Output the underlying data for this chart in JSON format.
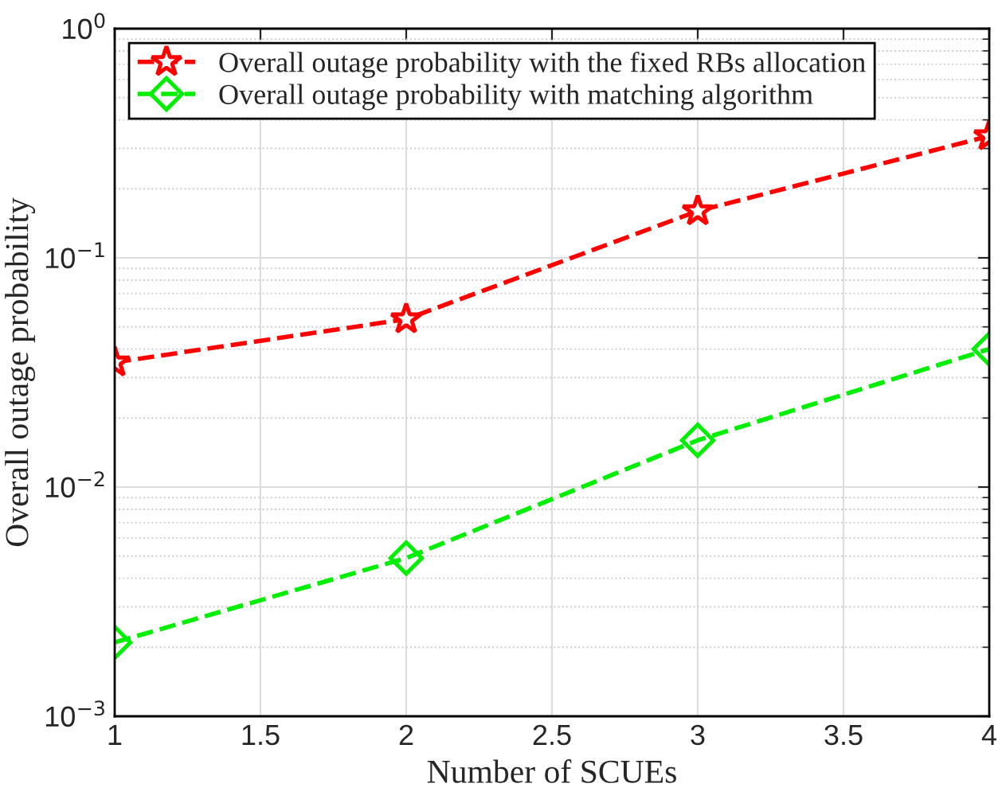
{
  "chart_data": {
    "type": "line",
    "xlabel": "Number of SCUEs",
    "ylabel": "Overall outage probability",
    "x": [
      1,
      2,
      3,
      4
    ],
    "series": [
      {
        "name": "Overall outage probability with the fixed RBs allocation",
        "color": "#ff0000",
        "marker": "star",
        "values": [
          0.035,
          0.054,
          0.16,
          0.34
        ]
      },
      {
        "name": "Overall outage probability with matching algorithm",
        "color": "#00ee00",
        "marker": "diamond",
        "values": [
          0.0021,
          0.0049,
          0.016,
          0.04
        ]
      }
    ],
    "line_style": "dashed",
    "log": "y",
    "xlim": [
      1,
      4
    ],
    "xticks": [
      1,
      1.5,
      2,
      2.5,
      3,
      3.5,
      4
    ],
    "ylim": [
      0.001,
      1
    ],
    "yticks": [
      {
        "value": 0.001,
        "label": "10$^{−3}$"
      },
      {
        "value": 0.01,
        "label": "10$^{−2}$"
      },
      {
        "value": 0.1,
        "label": "10$^{−1}$"
      },
      {
        "value": 1,
        "label": "10$^{0}$"
      }
    ],
    "grid": true,
    "legend": "top left"
  }
}
